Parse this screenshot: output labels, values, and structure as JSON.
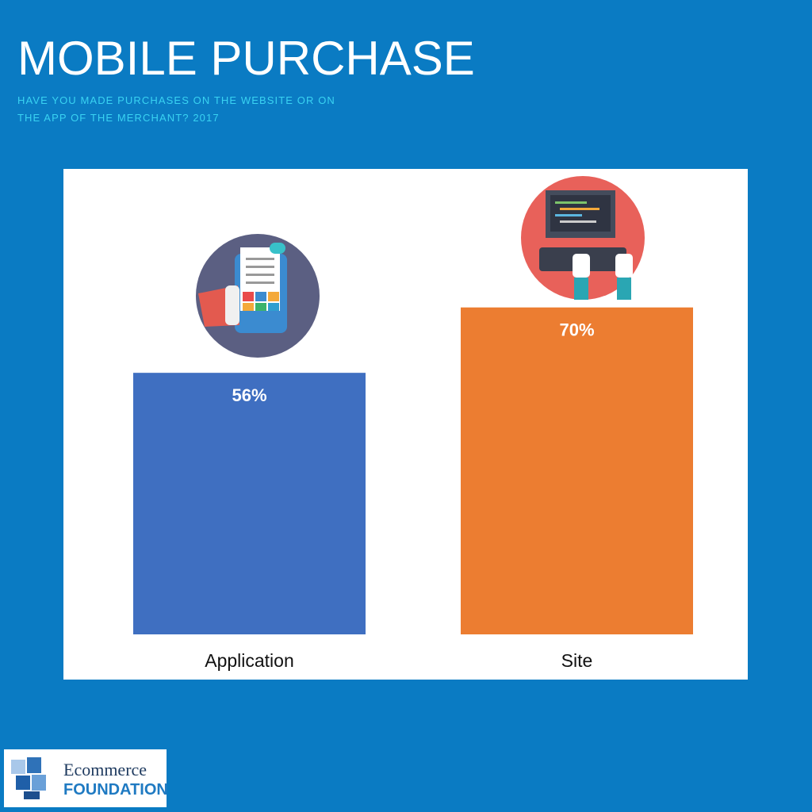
{
  "chart_data": {
    "type": "bar",
    "title": "MOBILE PURCHASE",
    "subtitle": [
      "HAVE YOU MADE PURCHASES ON THE WEBSITE OR ON",
      "THE APP OF THE MERCHANT? 2017"
    ],
    "categories": [
      "Application",
      "Site"
    ],
    "values": [
      56,
      70
    ],
    "value_labels": [
      "56%",
      "70%"
    ],
    "colors": [
      "#3f6fc1",
      "#ec7d31"
    ]
  },
  "logo": {
    "line1": "Ecommerce",
    "line2": "FOUNDATION"
  }
}
